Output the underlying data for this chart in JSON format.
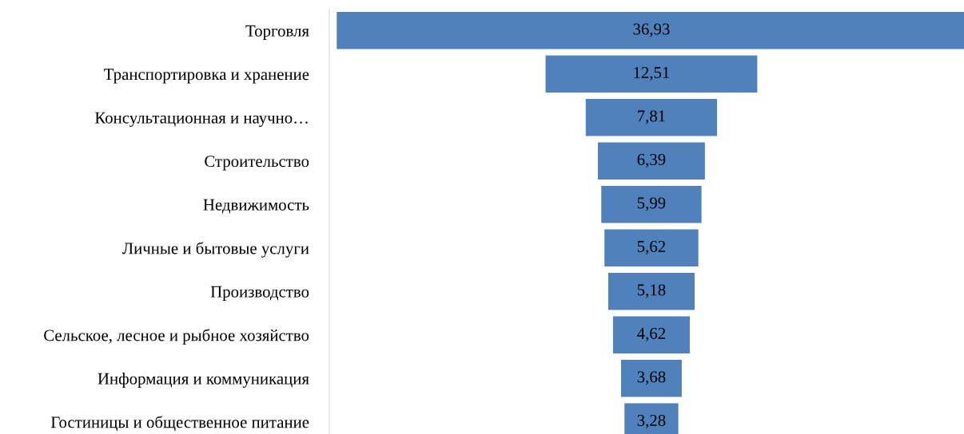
{
  "chart_data": {
    "type": "other",
    "categories": [
      "Торговля",
      "Транспортировка и хранение",
      "Консультационная и научно…",
      "Строительство",
      "Недвижимость",
      "Личные и бытовые услуги",
      "Производство",
      "Сельское, лесное и рыбное хозяйство",
      "Информация и коммуникация",
      "Гостиницы и общественное питание"
    ],
    "values": [
      36.93,
      12.51,
      7.81,
      6.39,
      5.99,
      5.62,
      5.18,
      4.62,
      3.68,
      3.28
    ],
    "value_labels": [
      "36,93",
      "12,51",
      "7,81",
      "6,39",
      "5,99",
      "5,62",
      "5,18",
      "4,62",
      "3,68",
      "3,28"
    ],
    "color": "#4f81bd"
  }
}
